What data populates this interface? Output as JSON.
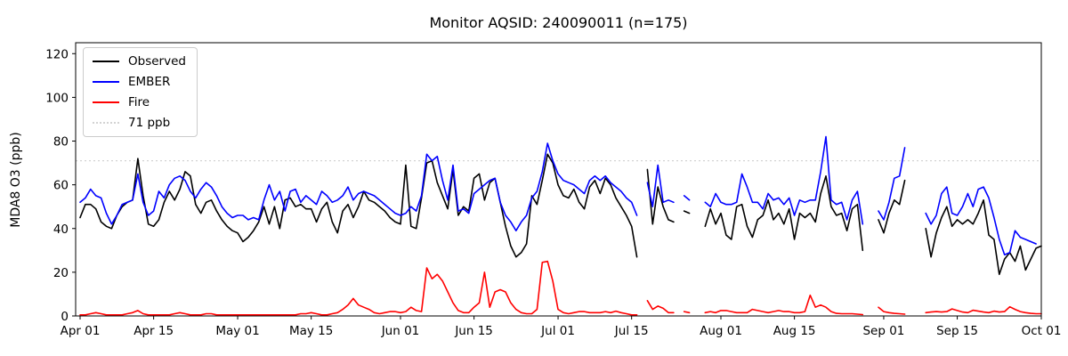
{
  "title": "Monitor AQSID: 240090011 (n=175)",
  "ylabel": "MDA8 O3 (ppb)",
  "legend": {
    "items": [
      {
        "label": "Observed",
        "color": "#000000",
        "style": "solid"
      },
      {
        "label": "EMBER",
        "color": "#0000ff",
        "style": "solid"
      },
      {
        "label": "Fire",
        "color": "#ff0000",
        "style": "solid"
      },
      {
        "label": "71 ppb",
        "color": "#d3d3d3",
        "style": "dotted"
      }
    ]
  },
  "chart_data": {
    "type": "line",
    "title": "Monitor AQSID: 240090011 (n=175)",
    "xlabel": "",
    "ylabel": "MDA8 O3 (ppb)",
    "x_unit": "days since Apr 01",
    "xlim": [
      -0.9,
      183
    ],
    "ylim": [
      0,
      125
    ],
    "grid": false,
    "legend_position": "upper left",
    "threshold": {
      "value": 71,
      "label": "71 ppb",
      "color": "#d3d3d3"
    },
    "y_ticks": [
      0,
      20,
      40,
      60,
      80,
      100,
      120
    ],
    "x_ticks": [
      {
        "pos": 0,
        "label": "Apr 01"
      },
      {
        "pos": 14,
        "label": "Apr 15"
      },
      {
        "pos": 30,
        "label": "May 01"
      },
      {
        "pos": 44,
        "label": "May 15"
      },
      {
        "pos": 61,
        "label": "Jun 01"
      },
      {
        "pos": 75,
        "label": "Jun 15"
      },
      {
        "pos": 91,
        "label": "Jul 01"
      },
      {
        "pos": 105,
        "label": "Jul 15"
      },
      {
        "pos": 122,
        "label": "Aug 01"
      },
      {
        "pos": 136,
        "label": "Aug 15"
      },
      {
        "pos": 153,
        "label": "Sep 01"
      },
      {
        "pos": 167,
        "label": "Sep 15"
      },
      {
        "pos": 183,
        "label": "Oct 01"
      }
    ],
    "series": [
      {
        "name": "Observed",
        "color": "#000000",
        "values": [
          45,
          51,
          51,
          49,
          43,
          41,
          40,
          46,
          50,
          52,
          53,
          72,
          55,
          42,
          41,
          44,
          52,
          57,
          53,
          58,
          66,
          64,
          51,
          47,
          52,
          53,
          48,
          44,
          41,
          39,
          38,
          34,
          36,
          39,
          43,
          50,
          42,
          50,
          40,
          53,
          54,
          50,
          51,
          49,
          49,
          43,
          49,
          52,
          43,
          38,
          48,
          51,
          45,
          50,
          57,
          53,
          52,
          50,
          48,
          45,
          43,
          42,
          69,
          41,
          40,
          54,
          70,
          71,
          61,
          55,
          49,
          67,
          46,
          50,
          48,
          63,
          65,
          53,
          61,
          63,
          52,
          41,
          32,
          27,
          29,
          33,
          55,
          51,
          62,
          74,
          70,
          60,
          55,
          54,
          58,
          52,
          49,
          59,
          62,
          56,
          63,
          60,
          54,
          50,
          46,
          41,
          27,
          null,
          67,
          42,
          59,
          50,
          44,
          43,
          null,
          48,
          47,
          null,
          null,
          41,
          49,
          42,
          47,
          37,
          35,
          50,
          51,
          41,
          36,
          44,
          46,
          53,
          44,
          47,
          42,
          49,
          35,
          47,
          45,
          47,
          43,
          56,
          64,
          50,
          46,
          47,
          39,
          49,
          51,
          30,
          null,
          null,
          44,
          38,
          47,
          53,
          51,
          62,
          null,
          null,
          null,
          40,
          27,
          38,
          45,
          50,
          41,
          44,
          42,
          44,
          42,
          47,
          53,
          37,
          35,
          19,
          26,
          29,
          25,
          32,
          21,
          26,
          31,
          32
        ]
      },
      {
        "name": "EMBER",
        "color": "#0000ff",
        "values": [
          52,
          54,
          58,
          55,
          54,
          47,
          42,
          46,
          51,
          52,
          53,
          65,
          52,
          46,
          48,
          57,
          54,
          60,
          63,
          64,
          62,
          57,
          54,
          58,
          61,
          59,
          55,
          50,
          47,
          45,
          46,
          46,
          44,
          45,
          44,
          53,
          60,
          53,
          57,
          48,
          57,
          58,
          52,
          55,
          53,
          51,
          57,
          55,
          52,
          53,
          55,
          59,
          53,
          56,
          57,
          56,
          55,
          53,
          51,
          49,
          47,
          46,
          47,
          50,
          48,
          55,
          74,
          71,
          73,
          62,
          53,
          69,
          48,
          49,
          47,
          56,
          58,
          60,
          62,
          63,
          52,
          46,
          43,
          39,
          43,
          46,
          54,
          57,
          66,
          79,
          71,
          65,
          62,
          61,
          60,
          58,
          56,
          62,
          64,
          62,
          64,
          61,
          59,
          57,
          54,
          52,
          46,
          null,
          61,
          50,
          69,
          52,
          53,
          52,
          null,
          55,
          53,
          null,
          null,
          52,
          50,
          56,
          52,
          51,
          51,
          52,
          65,
          59,
          52,
          52,
          49,
          56,
          53,
          54,
          51,
          54,
          46,
          53,
          52,
          53,
          53,
          66,
          82,
          53,
          51,
          52,
          44,
          53,
          57,
          42,
          null,
          null,
          48,
          44,
          52,
          63,
          64,
          77,
          null,
          null,
          null,
          47,
          42,
          46,
          56,
          59,
          47,
          46,
          50,
          56,
          50,
          58,
          59,
          54,
          45,
          35,
          28,
          29,
          39,
          36,
          35,
          34,
          33,
          null
        ]
      },
      {
        "name": "Fire",
        "color": "#ff0000",
        "values": [
          0.5,
          0.5,
          1,
          1.5,
          1,
          0.5,
          0.5,
          0.5,
          0.5,
          1,
          1.5,
          2.5,
          1,
          0.5,
          0.5,
          0.5,
          0.5,
          0.5,
          1,
          1.5,
          1,
          0.5,
          0.5,
          0.5,
          1,
          1,
          0.5,
          0.5,
          0.5,
          0.5,
          0.5,
          0.5,
          0.5,
          0.5,
          0.5,
          0.5,
          0.5,
          0.5,
          0.5,
          0.5,
          0.5,
          0.5,
          1,
          1,
          1.5,
          1,
          0.5,
          0.5,
          1,
          1.5,
          3,
          5,
          8,
          5,
          4,
          3,
          1.5,
          1,
          1.5,
          2,
          2,
          1.5,
          2,
          4,
          2.5,
          2,
          22,
          17,
          19,
          16,
          11,
          6,
          2.5,
          1.5,
          1.5,
          4,
          6,
          20,
          4,
          11,
          12,
          11,
          6,
          3,
          1.5,
          1,
          1,
          3,
          24.5,
          25,
          16,
          3,
          1.5,
          1,
          1.5,
          2,
          2,
          1.5,
          1.5,
          1.5,
          2,
          1.5,
          2.2,
          1.5,
          1,
          0.5,
          0.5,
          null,
          7,
          3,
          4.5,
          3.5,
          1.5,
          1.5,
          null,
          2,
          1.5,
          null,
          null,
          1.5,
          2,
          1.5,
          2.5,
          2.5,
          2,
          1.5,
          1.5,
          1.5,
          3,
          2.5,
          2,
          1.5,
          2,
          2.5,
          2,
          2,
          1.5,
          1.5,
          2,
          9.5,
          4,
          5,
          4,
          2,
          1.2,
          1,
          1,
          1,
          0.8,
          0.6,
          null,
          null,
          4,
          2,
          1.5,
          1.2,
          1,
          0.8,
          null,
          null,
          null,
          1.5,
          1.8,
          2,
          1.8,
          2,
          3.2,
          2.5,
          1.8,
          1.5,
          2.6,
          2.2,
          1.8,
          1.5,
          2.2,
          1.8,
          2,
          4.2,
          3,
          2,
          1.5,
          1.2,
          1,
          1
        ]
      }
    ]
  }
}
